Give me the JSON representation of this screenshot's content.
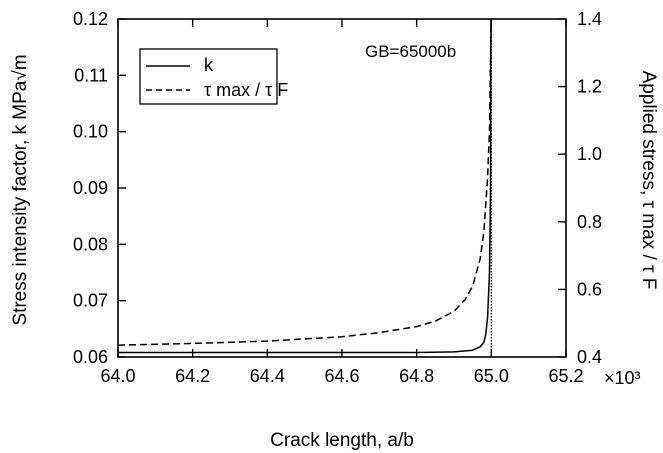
{
  "chart_data": {
    "type": "line",
    "title": "",
    "annotation": "GB=65000b",
    "xlabel": "Crack length,  a/b",
    "x_multiplier": "×10³",
    "ylabel_left": "Stress intensity factor, k  MPa√m",
    "ylabel_right": "Applied stress,  τ max / τ F",
    "xlim": [
      64.0,
      65.2
    ],
    "ylim_left": [
      0.06,
      0.12
    ],
    "ylim_right": [
      0.4,
      1.4
    ],
    "x_ticks": [
      "64.0",
      "64.2",
      "64.4",
      "64.6",
      "64.8",
      "65.0",
      "65.2"
    ],
    "y_left_ticks": [
      "0.06",
      "0.07",
      "0.08",
      "0.09",
      "0.10",
      "0.11",
      "0.12"
    ],
    "y_right_ticks": [
      "0.4",
      "0.6",
      "0.8",
      "1.0",
      "1.2",
      "1.4"
    ],
    "grain_boundary_x": 65.0,
    "grid": false,
    "legend": {
      "placement": "top-left",
      "entries": [
        "k",
        "τ max / τ F"
      ]
    },
    "series": [
      {
        "name": "k",
        "style": "solid",
        "axis": "left",
        "x": [
          64.0,
          64.2,
          64.4,
          64.6,
          64.8,
          64.9,
          64.95,
          64.97,
          64.98,
          64.985,
          64.99,
          64.995,
          64.998
        ],
        "y": [
          0.0608,
          0.0608,
          0.0608,
          0.0608,
          0.0608,
          0.0609,
          0.0612,
          0.0618,
          0.0626,
          0.064,
          0.067,
          0.075,
          0.09
        ]
      },
      {
        "name": "τ max / τ F",
        "style": "dashed",
        "axis": "right",
        "x": [
          64.0,
          64.2,
          64.4,
          64.6,
          64.7,
          64.8,
          64.85,
          64.9,
          64.93,
          64.95,
          64.97,
          64.98,
          64.99,
          64.995
        ],
        "y": [
          0.435,
          0.44,
          0.447,
          0.46,
          0.472,
          0.49,
          0.506,
          0.535,
          0.57,
          0.61,
          0.69,
          0.77,
          0.93,
          1.07
        ]
      }
    ]
  }
}
